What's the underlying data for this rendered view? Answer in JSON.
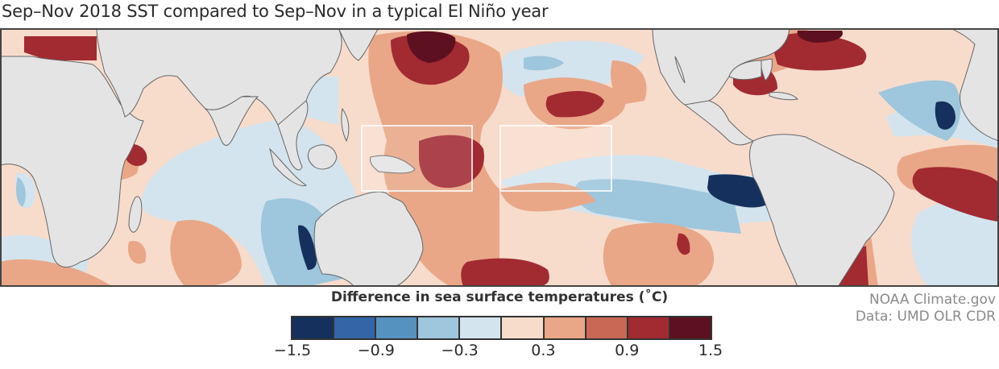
{
  "title": "Sep–Nov 2018 SST compared to Sep–Nov in a typical El Niño year",
  "legend": {
    "title": "Difference in sea surface temperatures (˚C)",
    "bins": [
      {
        "range": [
          -1.5,
          -1.2
        ],
        "color": "#15305c"
      },
      {
        "range": [
          -1.2,
          -0.9
        ],
        "color": "#3465a6"
      },
      {
        "range": [
          -0.9,
          -0.6
        ],
        "color": "#5692bf"
      },
      {
        "range": [
          -0.6,
          -0.3
        ],
        "color": "#9ec6dc"
      },
      {
        "range": [
          -0.3,
          0.0
        ],
        "color": "#d3e4ee"
      },
      {
        "range": [
          0.0,
          0.3
        ],
        "color": "#f7dccc"
      },
      {
        "range": [
          0.3,
          0.6
        ],
        "color": "#e9a787"
      },
      {
        "range": [
          0.6,
          0.9
        ],
        "color": "#c86855"
      },
      {
        "range": [
          0.9,
          1.2
        ],
        "color": "#a22a31"
      },
      {
        "range": [
          1.2,
          1.5
        ],
        "color": "#5d1120"
      }
    ],
    "ticks": [
      "−1.5",
      "−0.9",
      "−0.3",
      "0.3",
      "0.9",
      "1.5"
    ],
    "tick_values": [
      -1.5,
      -0.9,
      -0.3,
      0.3,
      0.9,
      1.5
    ]
  },
  "credits": {
    "line1": "NOAA Climate.gov",
    "line2": "Data: UMD OLR CDR"
  },
  "colors": {
    "land": "#e4e4e4",
    "coast": "#666666",
    "region_box": "#ffffff"
  }
}
